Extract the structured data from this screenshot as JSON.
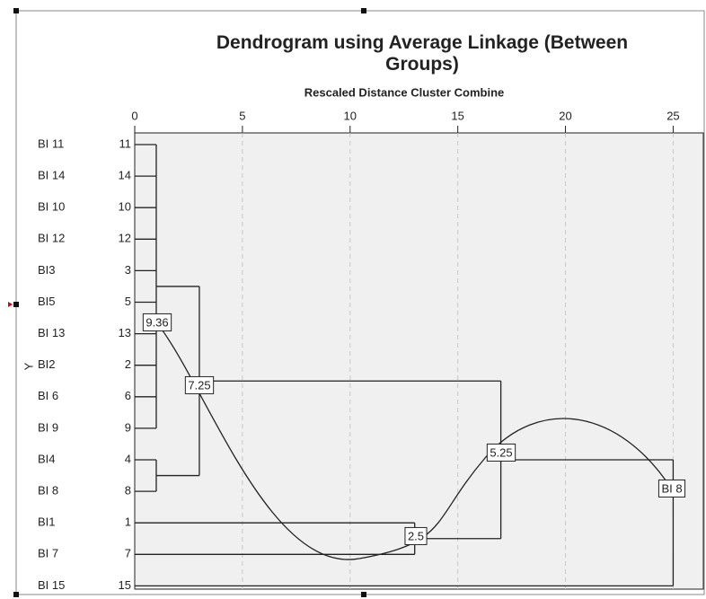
{
  "chart_data": {
    "type": "dendrogram",
    "title": "Dendrogram using Average Linkage (Between Groups)",
    "subtitle": "Rescaled Distance Cluster Combine",
    "y_label": "Y",
    "xlim": [
      0,
      26.4
    ],
    "xticks": [
      0,
      5,
      10,
      15,
      20,
      25
    ],
    "grid": true,
    "leaves": [
      "BI 11",
      "BI 14",
      "BI 10",
      "BI 12",
      "BI3",
      "BI5",
      "BI 13",
      "BI2",
      "BI  6",
      "BI  9",
      "BI4",
      "BI  8",
      "BI1",
      "BI  7",
      "BI 15"
    ],
    "case_numbers": [
      11,
      14,
      10,
      12,
      3,
      5,
      13,
      2,
      6,
      9,
      4,
      8,
      1,
      7,
      15
    ],
    "merges": [
      {
        "children": [
          0,
          1,
          2,
          3,
          4,
          5,
          6,
          7,
          8,
          9
        ],
        "distance": 1
      },
      {
        "children": [
          10,
          11
        ],
        "distance": 1
      },
      {
        "children": [
          "m0",
          "m1"
        ],
        "distance": 3
      },
      {
        "children": [
          12,
          13
        ],
        "distance": 13
      },
      {
        "children": [
          "m2",
          "m3"
        ],
        "distance": 17
      },
      {
        "children": [
          "m4",
          14
        ],
        "distance": 25
      }
    ],
    "annotations": [
      "9.36",
      "7.25",
      "2.5",
      "5.25",
      "BI 8"
    ]
  }
}
